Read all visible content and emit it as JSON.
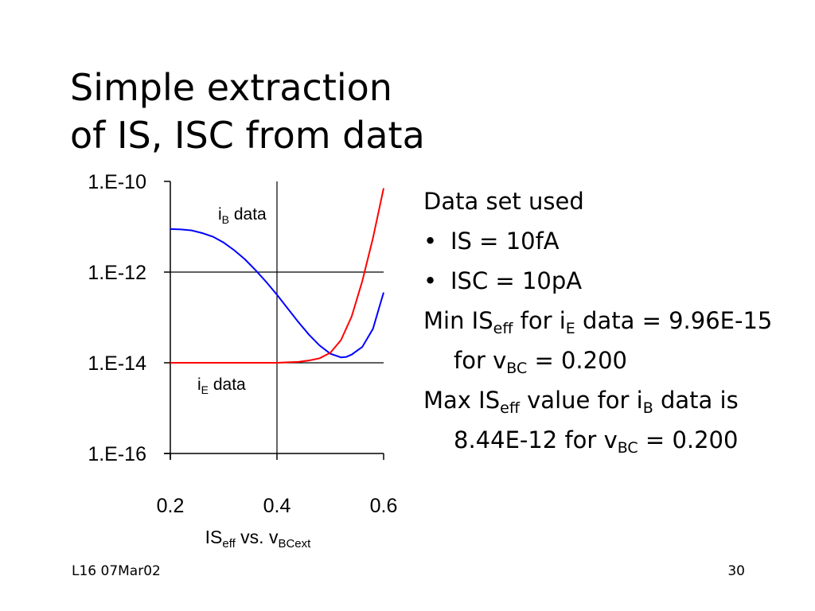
{
  "slide": {
    "title_line1": "Simple extraction",
    "title_line2": "of IS, ISC from data",
    "footer_left": "L16 07Mar02",
    "footer_right": "30"
  },
  "notes": {
    "heading": "Data set used",
    "bullet1": "IS = 10fA",
    "bullet2": "ISC = 10pA",
    "min_pre": "Min IS",
    "min_sub": "eff",
    "min_mid": " for i",
    "min_sub2": "E",
    "min_mid2": " data = 9.96E-15 for   v",
    "min_sub3": "BC",
    "min_post": " = 0.200",
    "max_pre": "Max IS",
    "max_sub": "eff",
    "max_mid": " value for i",
    "max_sub2": "B",
    "max_mid2": " data is 8.44E-12 for v",
    "max_sub3": "BC",
    "max_post": " = 0.200"
  },
  "chart_data": {
    "type": "line",
    "x_ticks": [
      "0.2",
      "0.4",
      "0.6"
    ],
    "y_ticks": [
      "1.E-10",
      "1.E-12",
      "1.E-14",
      "1.E-16"
    ],
    "xlim": [
      0.2,
      0.6
    ],
    "ylim_log10": [
      -16,
      -10
    ],
    "y_scale": "log",
    "xlabel_pre": "IS",
    "xlabel_sub": "eff",
    "xlabel_mid": " vs. v",
    "xlabel_sub2": "BCext",
    "grid": true,
    "series": [
      {
        "name": "iB data",
        "label_pre": "i",
        "label_sub": "B",
        "label_post": " data",
        "color": "#0000ff",
        "x": [
          0.2,
          0.22,
          0.24,
          0.26,
          0.28,
          0.3,
          0.32,
          0.34,
          0.36,
          0.38,
          0.4,
          0.42,
          0.44,
          0.46,
          0.48,
          0.5,
          0.52,
          0.53,
          0.54,
          0.56,
          0.58,
          0.6
        ],
        "log10_y": [
          -11.05,
          -11.06,
          -11.08,
          -11.14,
          -11.22,
          -11.35,
          -11.52,
          -11.72,
          -11.96,
          -12.22,
          -12.5,
          -12.8,
          -13.1,
          -13.38,
          -13.62,
          -13.8,
          -13.88,
          -13.87,
          -13.82,
          -13.65,
          -13.25,
          -12.45
        ]
      },
      {
        "name": "iE data",
        "label_pre": "i",
        "label_sub": "E",
        "label_post": " data",
        "color": "#ff0000",
        "x": [
          0.2,
          0.25,
          0.3,
          0.35,
          0.4,
          0.42,
          0.44,
          0.46,
          0.48,
          0.5,
          0.52,
          0.54,
          0.56,
          0.58,
          0.6
        ],
        "log10_y": [
          -14.0,
          -14.0,
          -14.0,
          -14.0,
          -14.0,
          -13.99,
          -13.98,
          -13.95,
          -13.9,
          -13.78,
          -13.5,
          -12.98,
          -12.2,
          -11.25,
          -10.15
        ]
      }
    ]
  }
}
